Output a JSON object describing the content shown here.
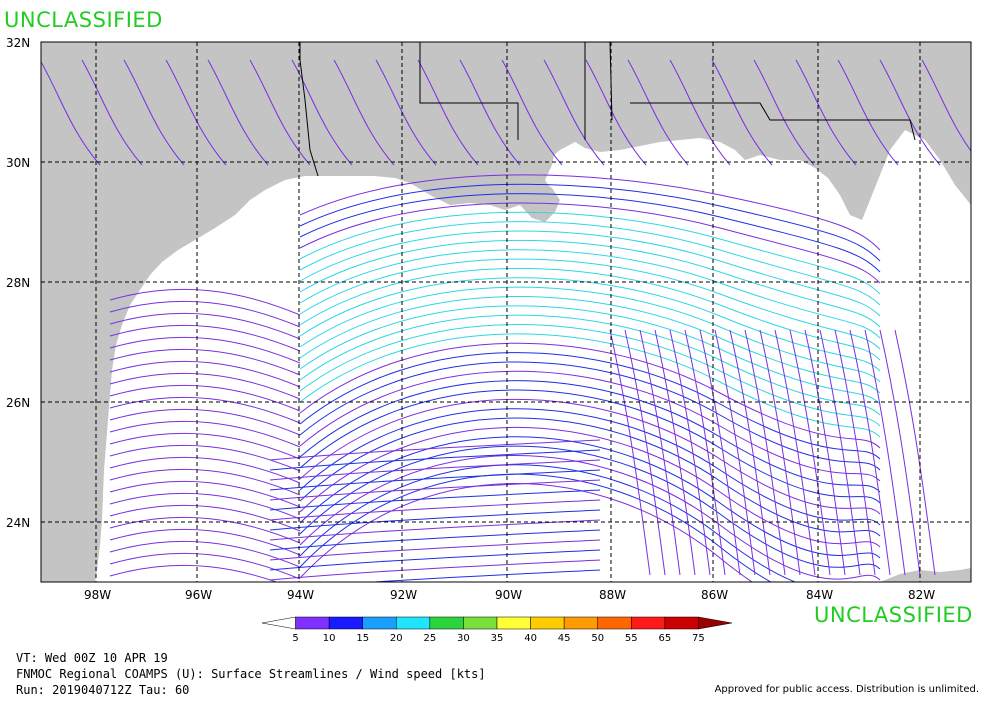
{
  "classification_top": "UNCLASSIFIED",
  "classification_bottom": "UNCLASSIFIED",
  "lat_labels": [
    "32N",
    "30N",
    "28N",
    "26N",
    "24N"
  ],
  "lon_labels": [
    "98W",
    "96W",
    "94W",
    "92W",
    "90W",
    "88W",
    "86W",
    "84W",
    "82W"
  ],
  "colorbar": {
    "labels": [
      "5",
      "10",
      "15",
      "20",
      "25",
      "30",
      "35",
      "40",
      "45",
      "50",
      "55",
      "65",
      "75"
    ],
    "colors": [
      "#ffffff",
      "#7f2fff",
      "#1a1aff",
      "#1a9fff",
      "#1fe6ff",
      "#2ad43a",
      "#77e03a",
      "#ffff33",
      "#ffcc00",
      "#ff9a00",
      "#ff6600",
      "#ff1a1a",
      "#cc0000",
      "#990000"
    ]
  },
  "colors": {
    "land": "#c4c4c4",
    "ocean": "#ffffff",
    "stream_purple": "#7a2fe0",
    "stream_blue": "#1f2fe6",
    "stream_cyan": "#2fd6e6",
    "classification": "#22cc22"
  },
  "caption": {
    "line1": "VT: Wed 00Z 10 APR 19",
    "line2": "FNMOC Regional COAMPS (U): Surface Streamlines / Wind speed [kts]",
    "line3": "Run: 2019040712Z Tau: 60"
  },
  "approval": "Approved for public access. Distribution is unlimited."
}
